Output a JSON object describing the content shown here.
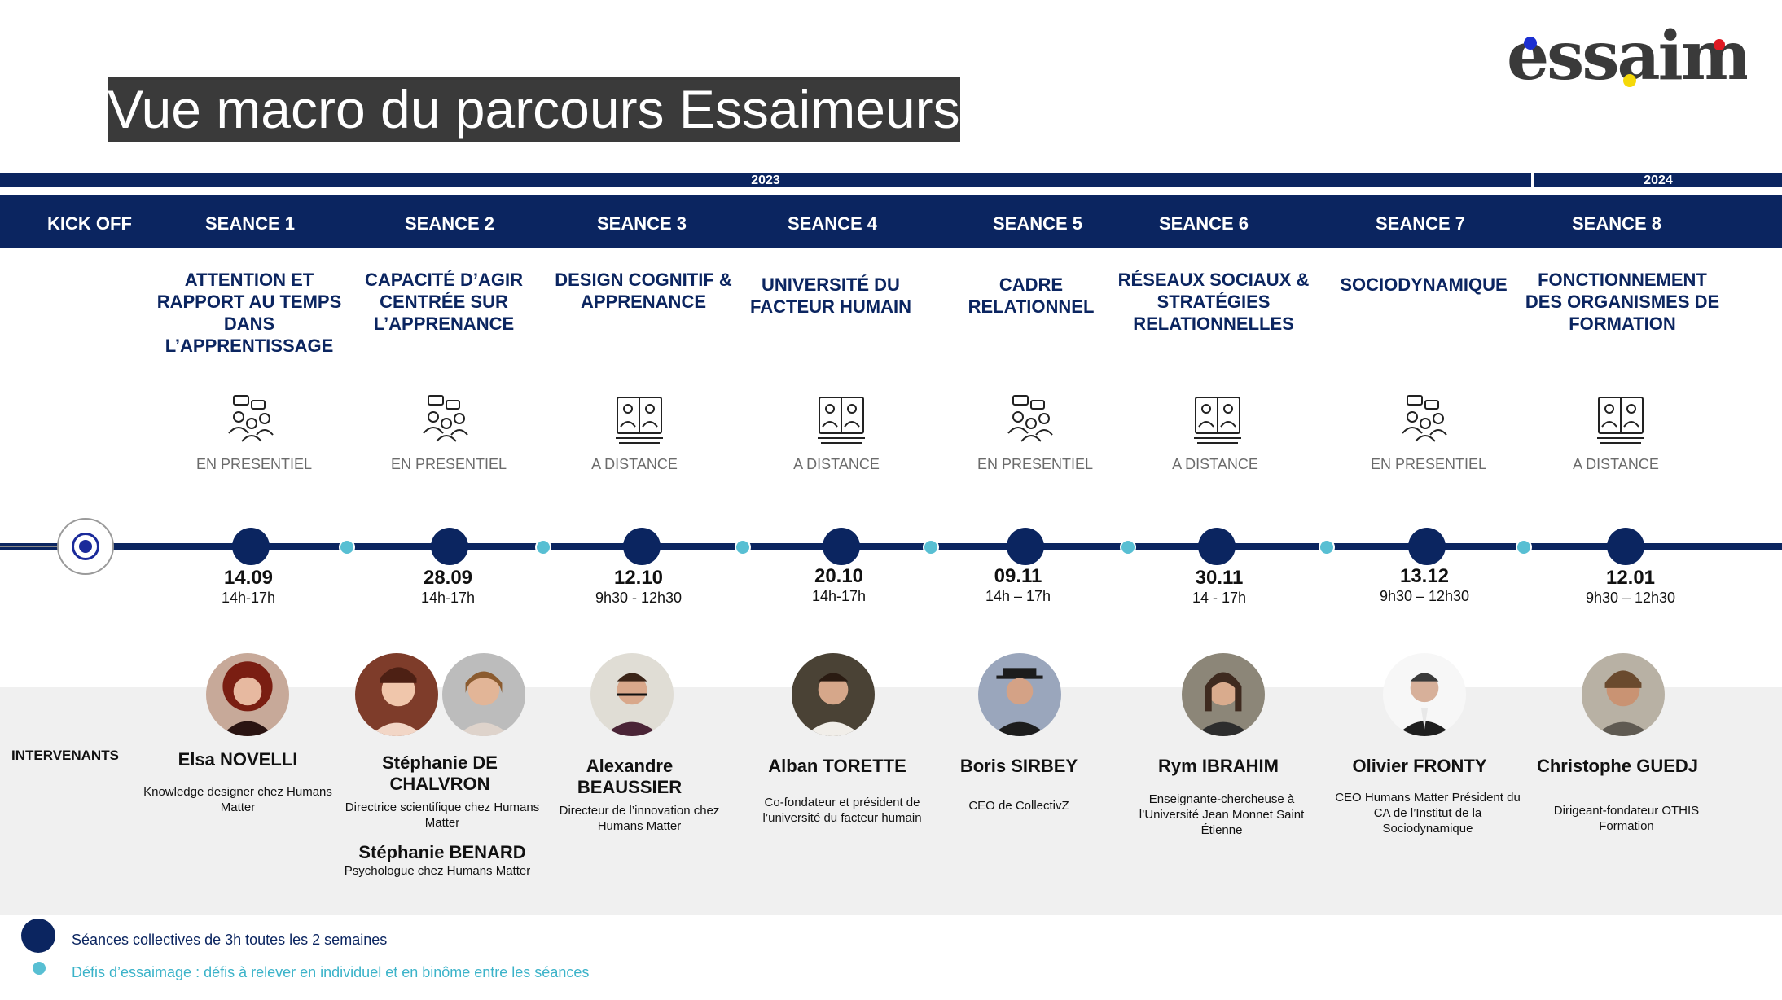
{
  "title": "Vue macro du parcours Essaimeurs",
  "logo": "essaim",
  "years": [
    "2023",
    "2024"
  ],
  "kickoff": "KICK OFF",
  "sessions": [
    {
      "label": "SEANCE 1",
      "theme": "ATTENTION ET RAPPORT AU TEMPS DANS L’APPRENTISSAGE",
      "mode": "EN PRESENTIEL",
      "icon": "group-meeting-icon",
      "date": "14.09",
      "time": "14h-17h"
    },
    {
      "label": "SEANCE 2",
      "theme": "CAPACITÉ D’AGIR CENTRÉE SUR L’APPRENANCE",
      "mode": "EN PRESENTIEL",
      "icon": "group-meeting-icon",
      "date": "28.09",
      "time": "14h-17h"
    },
    {
      "label": "SEANCE 3",
      "theme": "DESIGN COGNITIF & APPRENANCE",
      "mode": "A DISTANCE",
      "icon": "video-call-icon",
      "date": "12.10",
      "time": "9h30 - 12h30"
    },
    {
      "label": "SEANCE 4",
      "theme": "UNIVERSITÉ DU FACTEUR HUMAIN",
      "mode": "A DISTANCE",
      "icon": "video-call-icon",
      "date": "20.10",
      "time": "14h-17h"
    },
    {
      "label": "SEANCE 5",
      "theme": "CADRE RELATIONNEL",
      "mode": "EN PRESENTIEL",
      "icon": "group-meeting-icon",
      "date": "09.11",
      "time": "14h – 17h"
    },
    {
      "label": "SEANCE 6",
      "theme": "RÉSEAUX SOCIAUX & STRATÉGIES RELATIONNELLES",
      "mode": "A DISTANCE",
      "icon": "video-call-icon",
      "date": "30.11",
      "time": "14  - 17h"
    },
    {
      "label": "SEANCE 7",
      "theme": "SOCIODYNAMIQUE",
      "mode": "EN PRESENTIEL",
      "icon": "group-meeting-icon",
      "date": "13.12",
      "time": "9h30 – 12h30"
    },
    {
      "label": "SEANCE 8",
      "theme": "FONCTIONNEMENT DES ORGANISMES DE FORMATION",
      "mode": "A DISTANCE",
      "icon": "video-call-icon",
      "date": "12.01",
      "time": "9h30 – 12h30"
    }
  ],
  "intervenants_label": "INTERVENANTS",
  "speakers": [
    {
      "name": "Elsa NOVELLI",
      "role": "Knowledge designer chez Humans Matter"
    },
    {
      "name": "Stéphanie DE CHALVRON",
      "role": "Directrice scientifique chez Humans Matter"
    },
    {
      "name": "Stéphanie BENARD",
      "role": "Psychologue chez Humans Matter"
    },
    {
      "name": "Alexandre BEAUSSIER",
      "role": "Directeur de l’innovation chez Humans Matter"
    },
    {
      "name": "Alban TORETTE",
      "role": "Co-fondateur et président de l’université du facteur humain"
    },
    {
      "name": "Boris SIRBEY",
      "role": "CEO de CollectivZ"
    },
    {
      "name": "Rym IBRAHIM",
      "role": "Enseignante-chercheuse à l’Université Jean Monnet Saint Étienne"
    },
    {
      "name": "Olivier FRONTY",
      "role": "CEO Humans Matter Président du CA de l’Institut de la Sociodynamique"
    },
    {
      "name": "Christophe GUEDJ",
      "role": "Dirigeant-fondateur OTHIS Formation"
    }
  ],
  "legend": {
    "collective": "Séances collectives de 3h toutes les 2 semaines",
    "challenges": "Défis d’essaimage : défis à relever en individuel et en binôme entre les séances"
  },
  "colors": {
    "navy": "#0b2560",
    "teal": "#58bfd3",
    "grey_band": "#f0f0f0",
    "title_bg": "#3a3a3a"
  }
}
